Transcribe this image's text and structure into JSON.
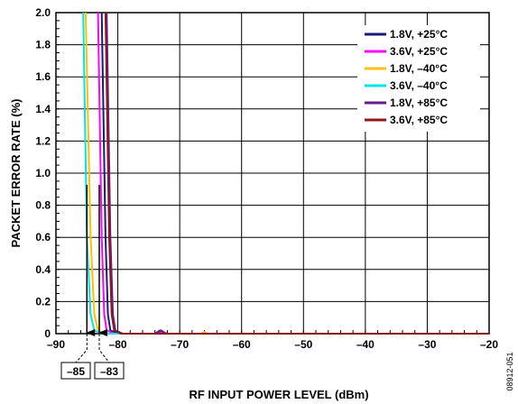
{
  "chart_data": {
    "type": "line",
    "xlabel": "RF INPUT POWER LEVEL (dBm)",
    "ylabel": "PACKET ERROR RATE (%)",
    "xlim": [
      -90,
      -20
    ],
    "ylim": [
      0,
      2.0
    ],
    "x_ticks": [
      "–90",
      "–80",
      "–70",
      "–60",
      "–50",
      "–40",
      "–30",
      "–20"
    ],
    "y_ticks": [
      "0",
      "0.2",
      "0.4",
      "0.6",
      "0.8",
      "1.0",
      "1.2",
      "1.4",
      "1.6",
      "1.8",
      "2.0"
    ],
    "grid": true,
    "legend_position": "top-right",
    "series": [
      {
        "name": "1.8V, +25°C",
        "color": "#1a1a7a",
        "points": [
          [
            -82.6,
            2.0
          ],
          [
            -82.0,
            0.6
          ],
          [
            -81.6,
            0.12
          ],
          [
            -81.2,
            0.02
          ],
          [
            -80.0,
            0.0
          ],
          [
            -74.0,
            0.0
          ],
          [
            -73.2,
            0.02
          ],
          [
            -72.4,
            0.0
          ],
          [
            -20,
            0.0
          ]
        ]
      },
      {
        "name": "3.6V, +25°C",
        "color": "#ff00ff",
        "points": [
          [
            -83.2,
            2.0
          ],
          [
            -82.6,
            0.6
          ],
          [
            -82.2,
            0.12
          ],
          [
            -81.8,
            0.02
          ],
          [
            -80.5,
            0.0
          ],
          [
            -73.5,
            0.0
          ],
          [
            -72.8,
            0.01
          ],
          [
            -72.0,
            0.0
          ],
          [
            -20,
            0.0
          ]
        ]
      },
      {
        "name": "1.8V, –40°C",
        "color": "#ffc000",
        "points": [
          [
            -85.2,
            2.0
          ],
          [
            -84.4,
            0.6
          ],
          [
            -83.8,
            0.12
          ],
          [
            -83.2,
            0.02
          ],
          [
            -82.0,
            0.0
          ],
          [
            -66.5,
            0.0
          ],
          [
            -66.0,
            0.01
          ],
          [
            -65.5,
            0.0
          ],
          [
            -20,
            0.0
          ]
        ]
      },
      {
        "name": "3.6V, –40°C",
        "color": "#00e5e5",
        "points": [
          [
            -85.6,
            2.0
          ],
          [
            -85.0,
            0.6
          ],
          [
            -84.4,
            0.12
          ],
          [
            -83.8,
            0.02
          ],
          [
            -82.5,
            0.0
          ],
          [
            -20,
            0.0
          ]
        ]
      },
      {
        "name": "1.8V, +85°C",
        "color": "#6a1a8a",
        "points": [
          [
            -81.8,
            2.0
          ],
          [
            -81.2,
            0.6
          ],
          [
            -80.8,
            0.12
          ],
          [
            -80.4,
            0.02
          ],
          [
            -79.2,
            0.0
          ],
          [
            -74.0,
            0.0
          ],
          [
            -73.0,
            0.02
          ],
          [
            -72.2,
            0.0
          ],
          [
            -20,
            0.0
          ]
        ]
      },
      {
        "name": "3.6V, +85°C",
        "color": "#8a1a1a",
        "points": [
          [
            -82.0,
            2.0
          ],
          [
            -81.4,
            0.6
          ],
          [
            -81.0,
            0.12
          ],
          [
            -80.6,
            0.02
          ],
          [
            -79.5,
            0.0
          ],
          [
            -20,
            0.0
          ]
        ]
      }
    ],
    "annotations": [
      {
        "label": "–85",
        "x": -85
      },
      {
        "label": "–83",
        "x": -83
      }
    ],
    "figure_id": "08912-051"
  }
}
